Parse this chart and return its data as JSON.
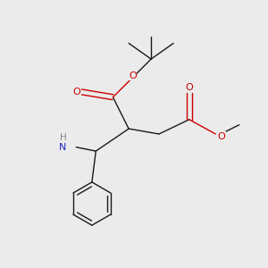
{
  "bg_color": "#ebebeb",
  "bond_color": "#1a1a1a",
  "o_color": "#cc0000",
  "n_color": "#2222cc",
  "h_color": "#888888",
  "line_width": 1.0,
  "figsize": [
    3.0,
    3.0
  ],
  "dpi": 100,
  "xlim": [
    0,
    10
  ],
  "ylim": [
    0,
    10
  ]
}
